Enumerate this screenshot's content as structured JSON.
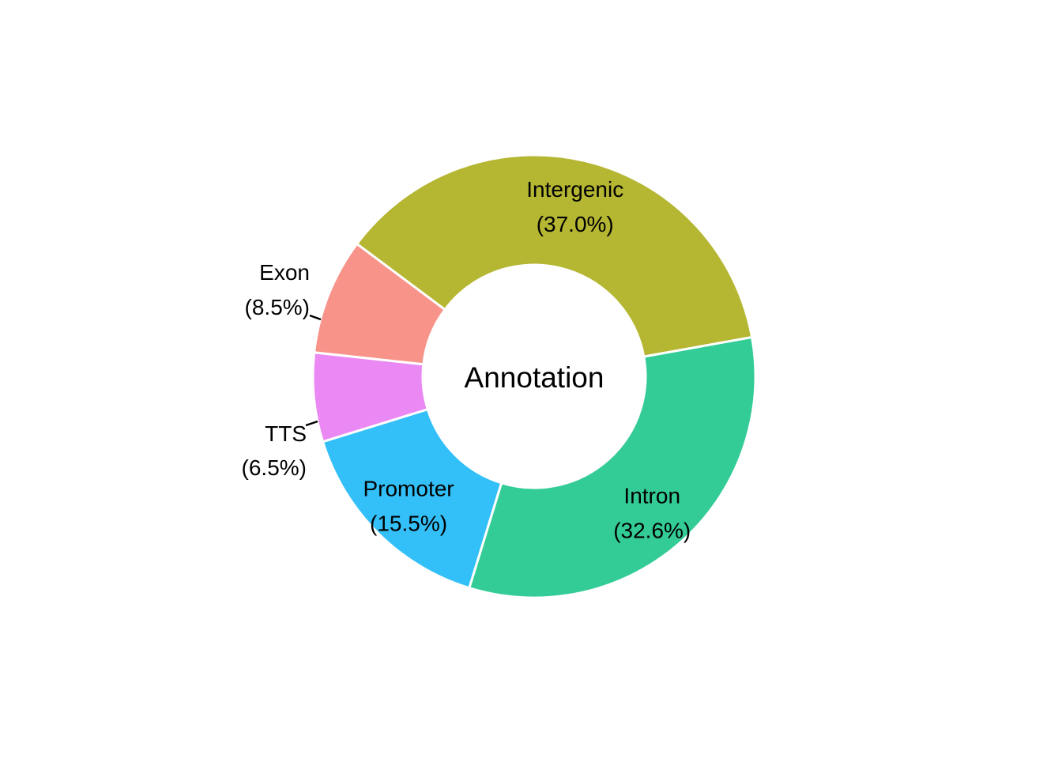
{
  "chart_data": {
    "type": "pie",
    "donut": true,
    "center_label": "Annotation",
    "slices": [
      {
        "label": "Intergenic",
        "percent_label": "(37.0%)",
        "value": 37.0,
        "color": "#B5B632"
      },
      {
        "label": "Intron",
        "percent_label": "(32.6%)",
        "value": 32.6,
        "color": "#33CC97"
      },
      {
        "label": "Promoter",
        "percent_label": "(15.5%)",
        "value": 15.5,
        "color": "#33BFF8"
      },
      {
        "label": "TTS",
        "percent_label": "(6.5%)",
        "value": 6.5,
        "color": "#EA89F4"
      },
      {
        "label": "Exon",
        "percent_label": "(8.5%)",
        "value": 8.5,
        "color": "#F8938A"
      }
    ]
  }
}
